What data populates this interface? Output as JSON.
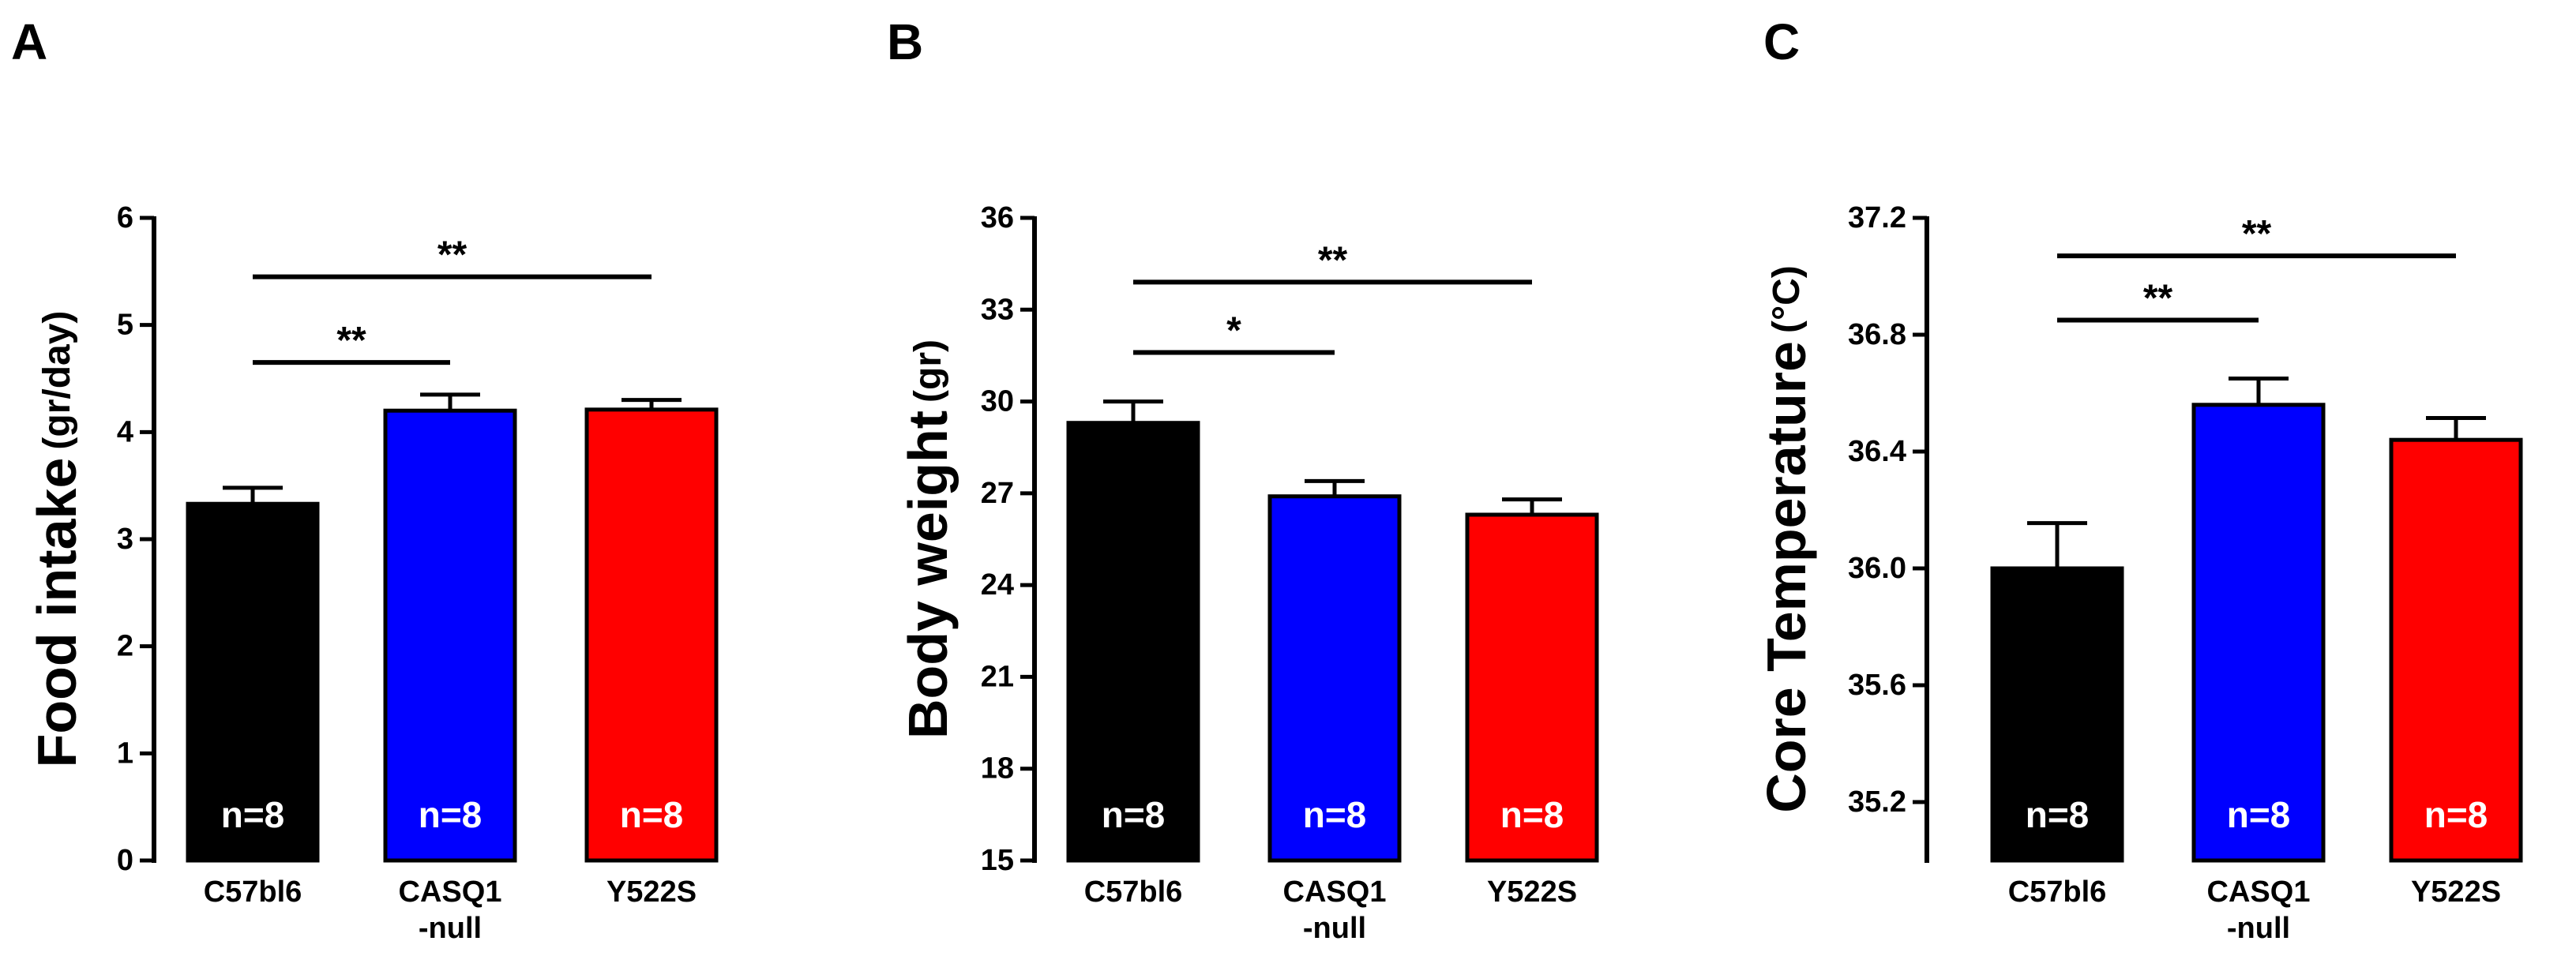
{
  "chart_data": [
    {
      "type": "bar",
      "panel_label": "A",
      "ylabel": "Food intake",
      "ylabel_unit": "(gr/day)",
      "ylim": [
        0,
        6
      ],
      "yticks": [
        0,
        1,
        2,
        3,
        4,
        5,
        6
      ],
      "ytick_labels": [
        "0",
        "1",
        "2",
        "3",
        "4",
        "5",
        "6"
      ],
      "categories": [
        {
          "lines": [
            "C57bl6"
          ]
        },
        {
          "lines": [
            "CASQ1",
            "-null"
          ]
        },
        {
          "lines": [
            "Y522S"
          ]
        }
      ],
      "values": [
        3.33,
        4.2,
        4.21
      ],
      "errors": [
        0.15,
        0.15,
        0.09
      ],
      "colors": [
        "#000000",
        "#0000ff",
        "#ff0000"
      ],
      "n_labels": [
        "n=8",
        "n=8",
        "n=8"
      ],
      "significance": [
        {
          "from": 0,
          "to": 1,
          "label": "**",
          "y": 4.65
        },
        {
          "from": 0,
          "to": 2,
          "label": "**",
          "y": 5.45
        }
      ]
    },
    {
      "type": "bar",
      "panel_label": "B",
      "ylabel": "Body weight",
      "ylabel_unit": "(gr)",
      "ylim": [
        15,
        36
      ],
      "yticks": [
        15,
        18,
        21,
        24,
        27,
        30,
        33,
        36
      ],
      "ytick_labels": [
        "15",
        "18",
        "21",
        "24",
        "27",
        "30",
        "33",
        "36"
      ],
      "categories": [
        {
          "lines": [
            "C57bl6"
          ]
        },
        {
          "lines": [
            "CASQ1",
            "-null"
          ]
        },
        {
          "lines": [
            "Y522S"
          ]
        }
      ],
      "values": [
        29.3,
        26.9,
        26.3
      ],
      "errors": [
        0.7,
        0.5,
        0.5
      ],
      "colors": [
        "#000000",
        "#0000ff",
        "#ff0000"
      ],
      "n_labels": [
        "n=8",
        "n=8",
        "n=8"
      ],
      "significance": [
        {
          "from": 0,
          "to": 1,
          "label": "*",
          "y": 31.6
        },
        {
          "from": 0,
          "to": 2,
          "label": "**",
          "y": 33.9
        }
      ]
    },
    {
      "type": "bar",
      "panel_label": "C",
      "ylabel": "Core Temperature",
      "ylabel_unit": "(°C)",
      "ylim": [
        35.0,
        37.2
      ],
      "yticks": [
        35.2,
        35.6,
        36.0,
        36.4,
        36.8,
        37.2
      ],
      "ytick_labels": [
        "35.2",
        "35.6",
        "36.0",
        "36.4",
        "36.8",
        "37.2"
      ],
      "categories": [
        {
          "lines": [
            "C57bl6"
          ]
        },
        {
          "lines": [
            "CASQ1",
            "-null"
          ]
        },
        {
          "lines": [
            "Y522S"
          ]
        }
      ],
      "values": [
        36.0,
        36.56,
        36.44
      ],
      "errors": [
        0.155,
        0.09,
        0.075
      ],
      "colors": [
        "#000000",
        "#0000ff",
        "#ff0000"
      ],
      "n_labels": [
        "n=8",
        "n=8",
        "n=8"
      ],
      "significance": [
        {
          "from": 0,
          "to": 1,
          "label": "**",
          "y": 36.85
        },
        {
          "from": 0,
          "to": 2,
          "label": "**",
          "y": 37.07
        }
      ]
    }
  ]
}
